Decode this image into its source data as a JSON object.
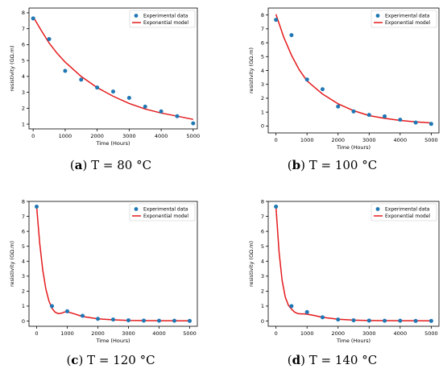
{
  "chart_data": [
    {
      "type": "scatter",
      "caption_label": "a",
      "caption_text": "T = 80 °C",
      "xlabel": "Time (Hours)",
      "ylabel": "resistivity (GΩ.m)",
      "xlim": [
        -130,
        5130
      ],
      "ylim": [
        0.7,
        8.3
      ],
      "xticks": [
        0,
        1000,
        2000,
        3000,
        4000,
        5000
      ],
      "yticks": [
        1,
        2,
        3,
        4,
        5,
        6,
        7,
        8
      ],
      "legend_position": "top-right",
      "grid": false,
      "series": [
        {
          "name": "Experimental data",
          "kind": "points",
          "color": "#1f77b4",
          "x": [
            0,
            500,
            1000,
            1500,
            2000,
            2500,
            3000,
            3500,
            4000,
            4500,
            5000
          ],
          "y": [
            7.65,
            6.35,
            4.35,
            3.8,
            3.3,
            3.05,
            2.65,
            2.1,
            1.8,
            1.5,
            1.05
          ]
        },
        {
          "name": "Exponential model",
          "kind": "line",
          "color": "#e41a1c",
          "x": [
            0,
            250,
            500,
            750,
            1000,
            1500,
            2000,
            2500,
            3000,
            3500,
            4000,
            4500,
            5000
          ],
          "y": [
            7.75,
            6.9,
            6.1,
            5.45,
            4.9,
            4.0,
            3.3,
            2.75,
            2.3,
            1.95,
            1.7,
            1.5,
            1.3
          ]
        }
      ]
    },
    {
      "type": "scatter",
      "caption_label": "b",
      "caption_text": "T = 100 °C",
      "xlabel": "Time (Hours)",
      "ylabel": "resistivity (GΩ.m)",
      "xlim": [
        -250,
        5250
      ],
      "ylim": [
        -0.5,
        8.5
      ],
      "xticks": [
        0,
        1000,
        2000,
        3000,
        4000,
        5000
      ],
      "yticks": [
        0,
        1,
        2,
        3,
        4,
        5,
        6,
        7,
        8
      ],
      "legend_position": "top-right",
      "grid": false,
      "series": [
        {
          "name": "Experimental data",
          "kind": "points",
          "color": "#1f77b4",
          "x": [
            0,
            500,
            1000,
            1500,
            2000,
            2500,
            3000,
            3500,
            4000,
            4500,
            5000
          ],
          "y": [
            7.65,
            6.55,
            3.35,
            2.65,
            1.4,
            1.05,
            0.8,
            0.7,
            0.45,
            0.25,
            0.15
          ]
        },
        {
          "name": "Exponential model",
          "kind": "line",
          "color": "#e41a1c",
          "x": [
            0,
            250,
            500,
            750,
            1000,
            1500,
            2000,
            2500,
            3000,
            3500,
            4000,
            4500,
            5000
          ],
          "y": [
            8.05,
            6.4,
            5.1,
            4.05,
            3.25,
            2.3,
            1.6,
            1.1,
            0.75,
            0.55,
            0.4,
            0.3,
            0.22
          ]
        }
      ]
    },
    {
      "type": "scatter",
      "caption_label": "c",
      "caption_text": "T = 120 °C",
      "xlabel": "Time (Hours)",
      "ylabel": "resistivity (GΩ.m)",
      "xlim": [
        -250,
        5250
      ],
      "ylim": [
        -0.35,
        8.0
      ],
      "xticks": [
        0,
        1000,
        2000,
        3000,
        4000,
        5000
      ],
      "yticks": [
        0,
        1,
        2,
        3,
        4,
        5,
        6,
        7,
        8
      ],
      "legend_position": "top-right",
      "grid": false,
      "series": [
        {
          "name": "Experimental data",
          "kind": "points",
          "color": "#1f77b4",
          "x": [
            0,
            500,
            1000,
            1500,
            2000,
            2500,
            3000,
            3500,
            4000,
            4500,
            5000
          ],
          "y": [
            7.65,
            1.0,
            0.65,
            0.35,
            0.15,
            0.1,
            0.05,
            0.03,
            0.02,
            0.02,
            0.01
          ]
        },
        {
          "name": "Exponential model",
          "kind": "line",
          "color": "#e41a1c",
          "x": [
            0,
            100,
            200,
            300,
            400,
            500,
            600,
            700,
            800,
            900,
            1000,
            1200,
            1500,
            2000,
            2500,
            3000,
            4000,
            5000
          ],
          "y": [
            7.65,
            5.2,
            3.4,
            2.15,
            1.35,
            0.85,
            0.6,
            0.5,
            0.52,
            0.6,
            0.62,
            0.5,
            0.3,
            0.15,
            0.08,
            0.04,
            0.02,
            0.01
          ]
        }
      ]
    },
    {
      "type": "scatter",
      "caption_label": "d",
      "caption_text": "T = 140 °C",
      "xlabel": "Time (Hours)",
      "ylabel": "resistivity (GΩ.m)",
      "xlim": [
        -250,
        5250
      ],
      "ylim": [
        -0.35,
        8.0
      ],
      "xticks": [
        0,
        1000,
        2000,
        3000,
        4000,
        5000
      ],
      "yticks": [
        0,
        1,
        2,
        3,
        4,
        5,
        6,
        7,
        8
      ],
      "legend_position": "top-right",
      "grid": false,
      "series": [
        {
          "name": "Experimental data",
          "kind": "points",
          "color": "#1f77b4",
          "x": [
            0,
            500,
            1000,
            1500,
            2000,
            2500,
            3000,
            3500,
            4000,
            4500,
            5000
          ],
          "y": [
            7.65,
            1.0,
            0.6,
            0.25,
            0.1,
            0.05,
            0.03,
            0.02,
            0.02,
            0.01,
            0.01
          ]
        },
        {
          "name": "Exponential model",
          "kind": "line",
          "color": "#e41a1c",
          "x": [
            0,
            100,
            200,
            300,
            400,
            500,
            600,
            700,
            800,
            900,
            1000,
            1200,
            1500,
            2000,
            2500,
            3000,
            4000,
            5000
          ],
          "y": [
            7.65,
            4.6,
            2.7,
            1.6,
            1.05,
            0.8,
            0.6,
            0.5,
            0.48,
            0.48,
            0.46,
            0.38,
            0.25,
            0.12,
            0.06,
            0.03,
            0.02,
            0.01
          ]
        }
      ]
    }
  ]
}
